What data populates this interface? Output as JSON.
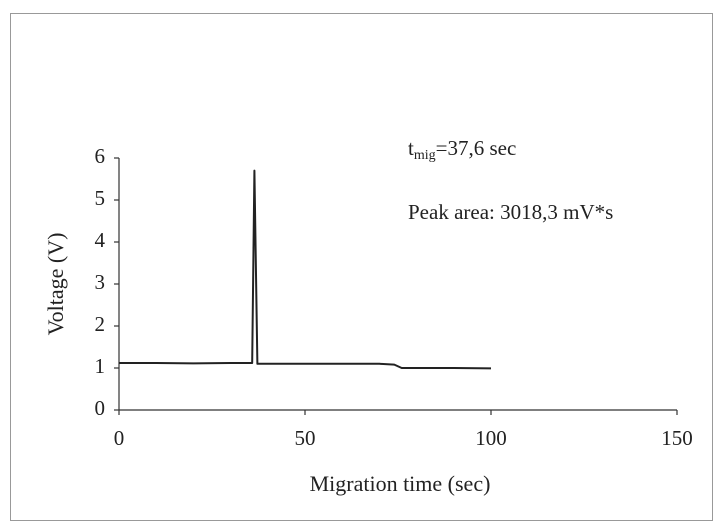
{
  "chart_data": {
    "type": "line",
    "x_label": "Migration time (sec)",
    "y_label": "Voltage (V)",
    "annotation_1": {
      "main": "t",
      "sub": "mig",
      "rest": "=37,6 sec"
    },
    "annotation_2": "Peak area: 3018,3 mV*s",
    "x": [
      0,
      10,
      20,
      30,
      35.8,
      36.4,
      37.2,
      40,
      50,
      60,
      70,
      74,
      76,
      80,
      90,
      100
    ],
    "series": [
      {
        "color": "#222222",
        "values": [
          1.12,
          1.12,
          1.11,
          1.12,
          1.12,
          5.7,
          1.1,
          1.1,
          1.1,
          1.1,
          1.1,
          1.08,
          1.0,
          1.0,
          1.0,
          0.99
        ]
      }
    ],
    "xlim": [
      0,
      150
    ],
    "xticks": [
      0,
      50,
      100,
      150
    ],
    "ylim": [
      0,
      6
    ],
    "yticks": [
      0,
      1,
      2,
      3,
      4,
      5,
      6
    ]
  }
}
